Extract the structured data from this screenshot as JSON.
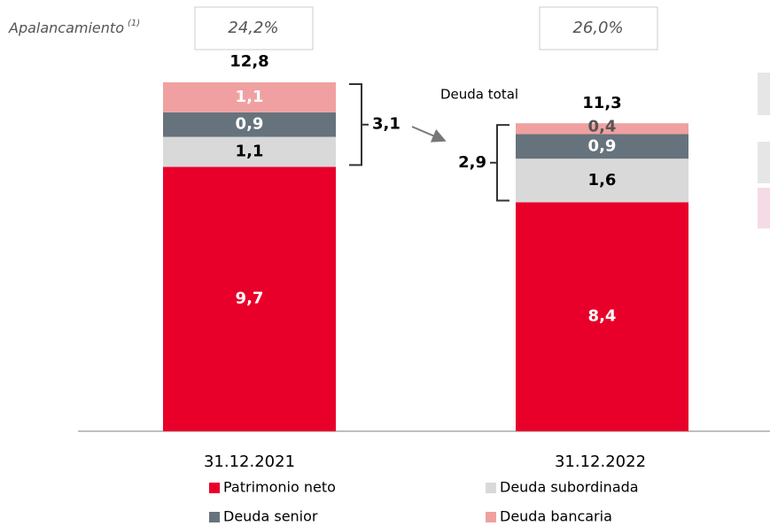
{
  "chart_data": {
    "type": "stacked_bar",
    "categories": [
      "31.12.2021",
      "31.12.2022"
    ],
    "series": [
      {
        "name": "Patrimonio neto",
        "color": "#e8002a",
        "values": [
          9.7,
          8.4
        ],
        "value_labels": [
          "9,7",
          "8,4"
        ]
      },
      {
        "name": "Deuda subordinada",
        "color": "#d9d9d9",
        "values": [
          1.1,
          1.6
        ],
        "value_labels": [
          "1,1",
          "1,6"
        ]
      },
      {
        "name": "Deuda senior",
        "color": "#66737d",
        "values": [
          0.9,
          0.9
        ],
        "value_labels": [
          "0,9",
          "0,9"
        ]
      },
      {
        "name": "Deuda bancaria",
        "color": "#f0a0a0",
        "values": [
          1.1,
          0.4
        ],
        "value_labels": [
          "1,1",
          "0,4"
        ]
      }
    ],
    "totals": [
      12.8,
      11.3
    ],
    "total_labels": [
      "12,8",
      "11,3"
    ],
    "debt_totals": [
      3.1,
      2.9
    ],
    "debt_total_labels": [
      "3,1",
      "2,9"
    ],
    "debt_annotation": "Deuda total",
    "leverage_label": "Apalancamiento",
    "leverage_note": "(1)",
    "leverage": [
      24.2,
      26.0
    ],
    "leverage_labels": [
      "24,2%",
      "26,0%"
    ]
  }
}
